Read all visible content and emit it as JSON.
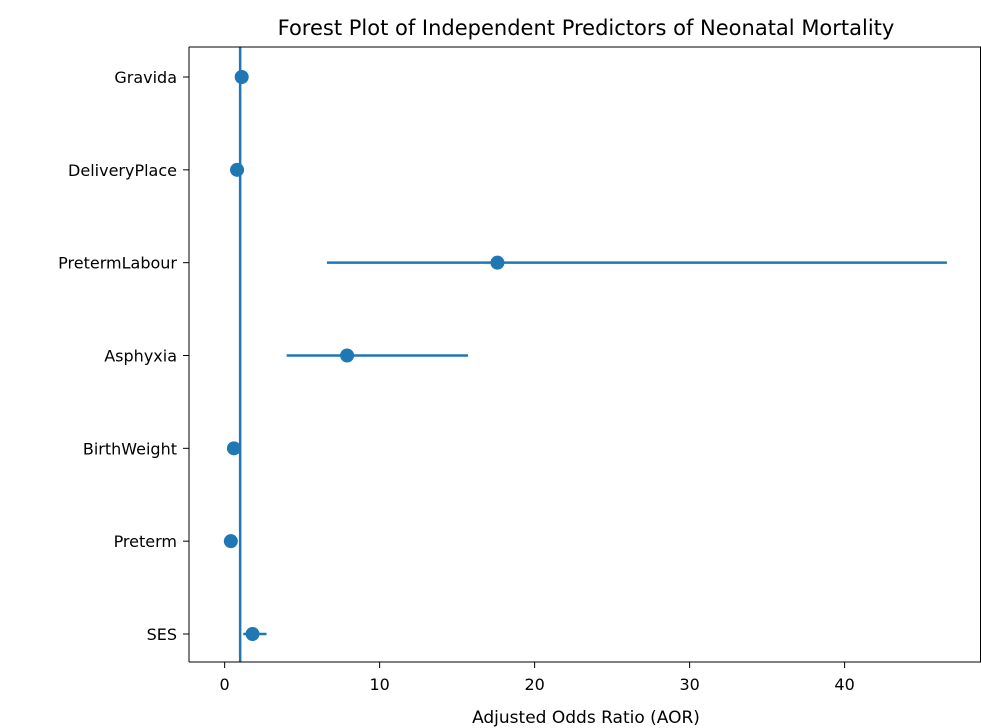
{
  "chart_data": {
    "type": "scatter",
    "title": "Forest Plot of Independent Predictors of Neonatal Mortality",
    "xlabel": "Adjusted Odds Ratio (AOR)",
    "ylabel": "",
    "xlim": [
      -2.3,
      48.8
    ],
    "xticks": [
      0,
      10,
      20,
      30,
      40
    ],
    "reference_line_x": 1,
    "grid": false,
    "legend": "none",
    "color": "#1f77b4",
    "categories": [
      "Gravida",
      "DeliveryPlace",
      "PretermLabour",
      "Asphyxia",
      "BirthWeight",
      "Preterm",
      "SES"
    ],
    "aor": [
      1.1,
      0.8,
      17.6,
      7.9,
      0.6,
      0.4,
      1.8
    ],
    "ci_lower": [
      null,
      null,
      6.6,
      4.0,
      null,
      null,
      1.2
    ],
    "ci_upper": [
      null,
      null,
      46.6,
      15.7,
      null,
      null,
      2.7
    ]
  }
}
